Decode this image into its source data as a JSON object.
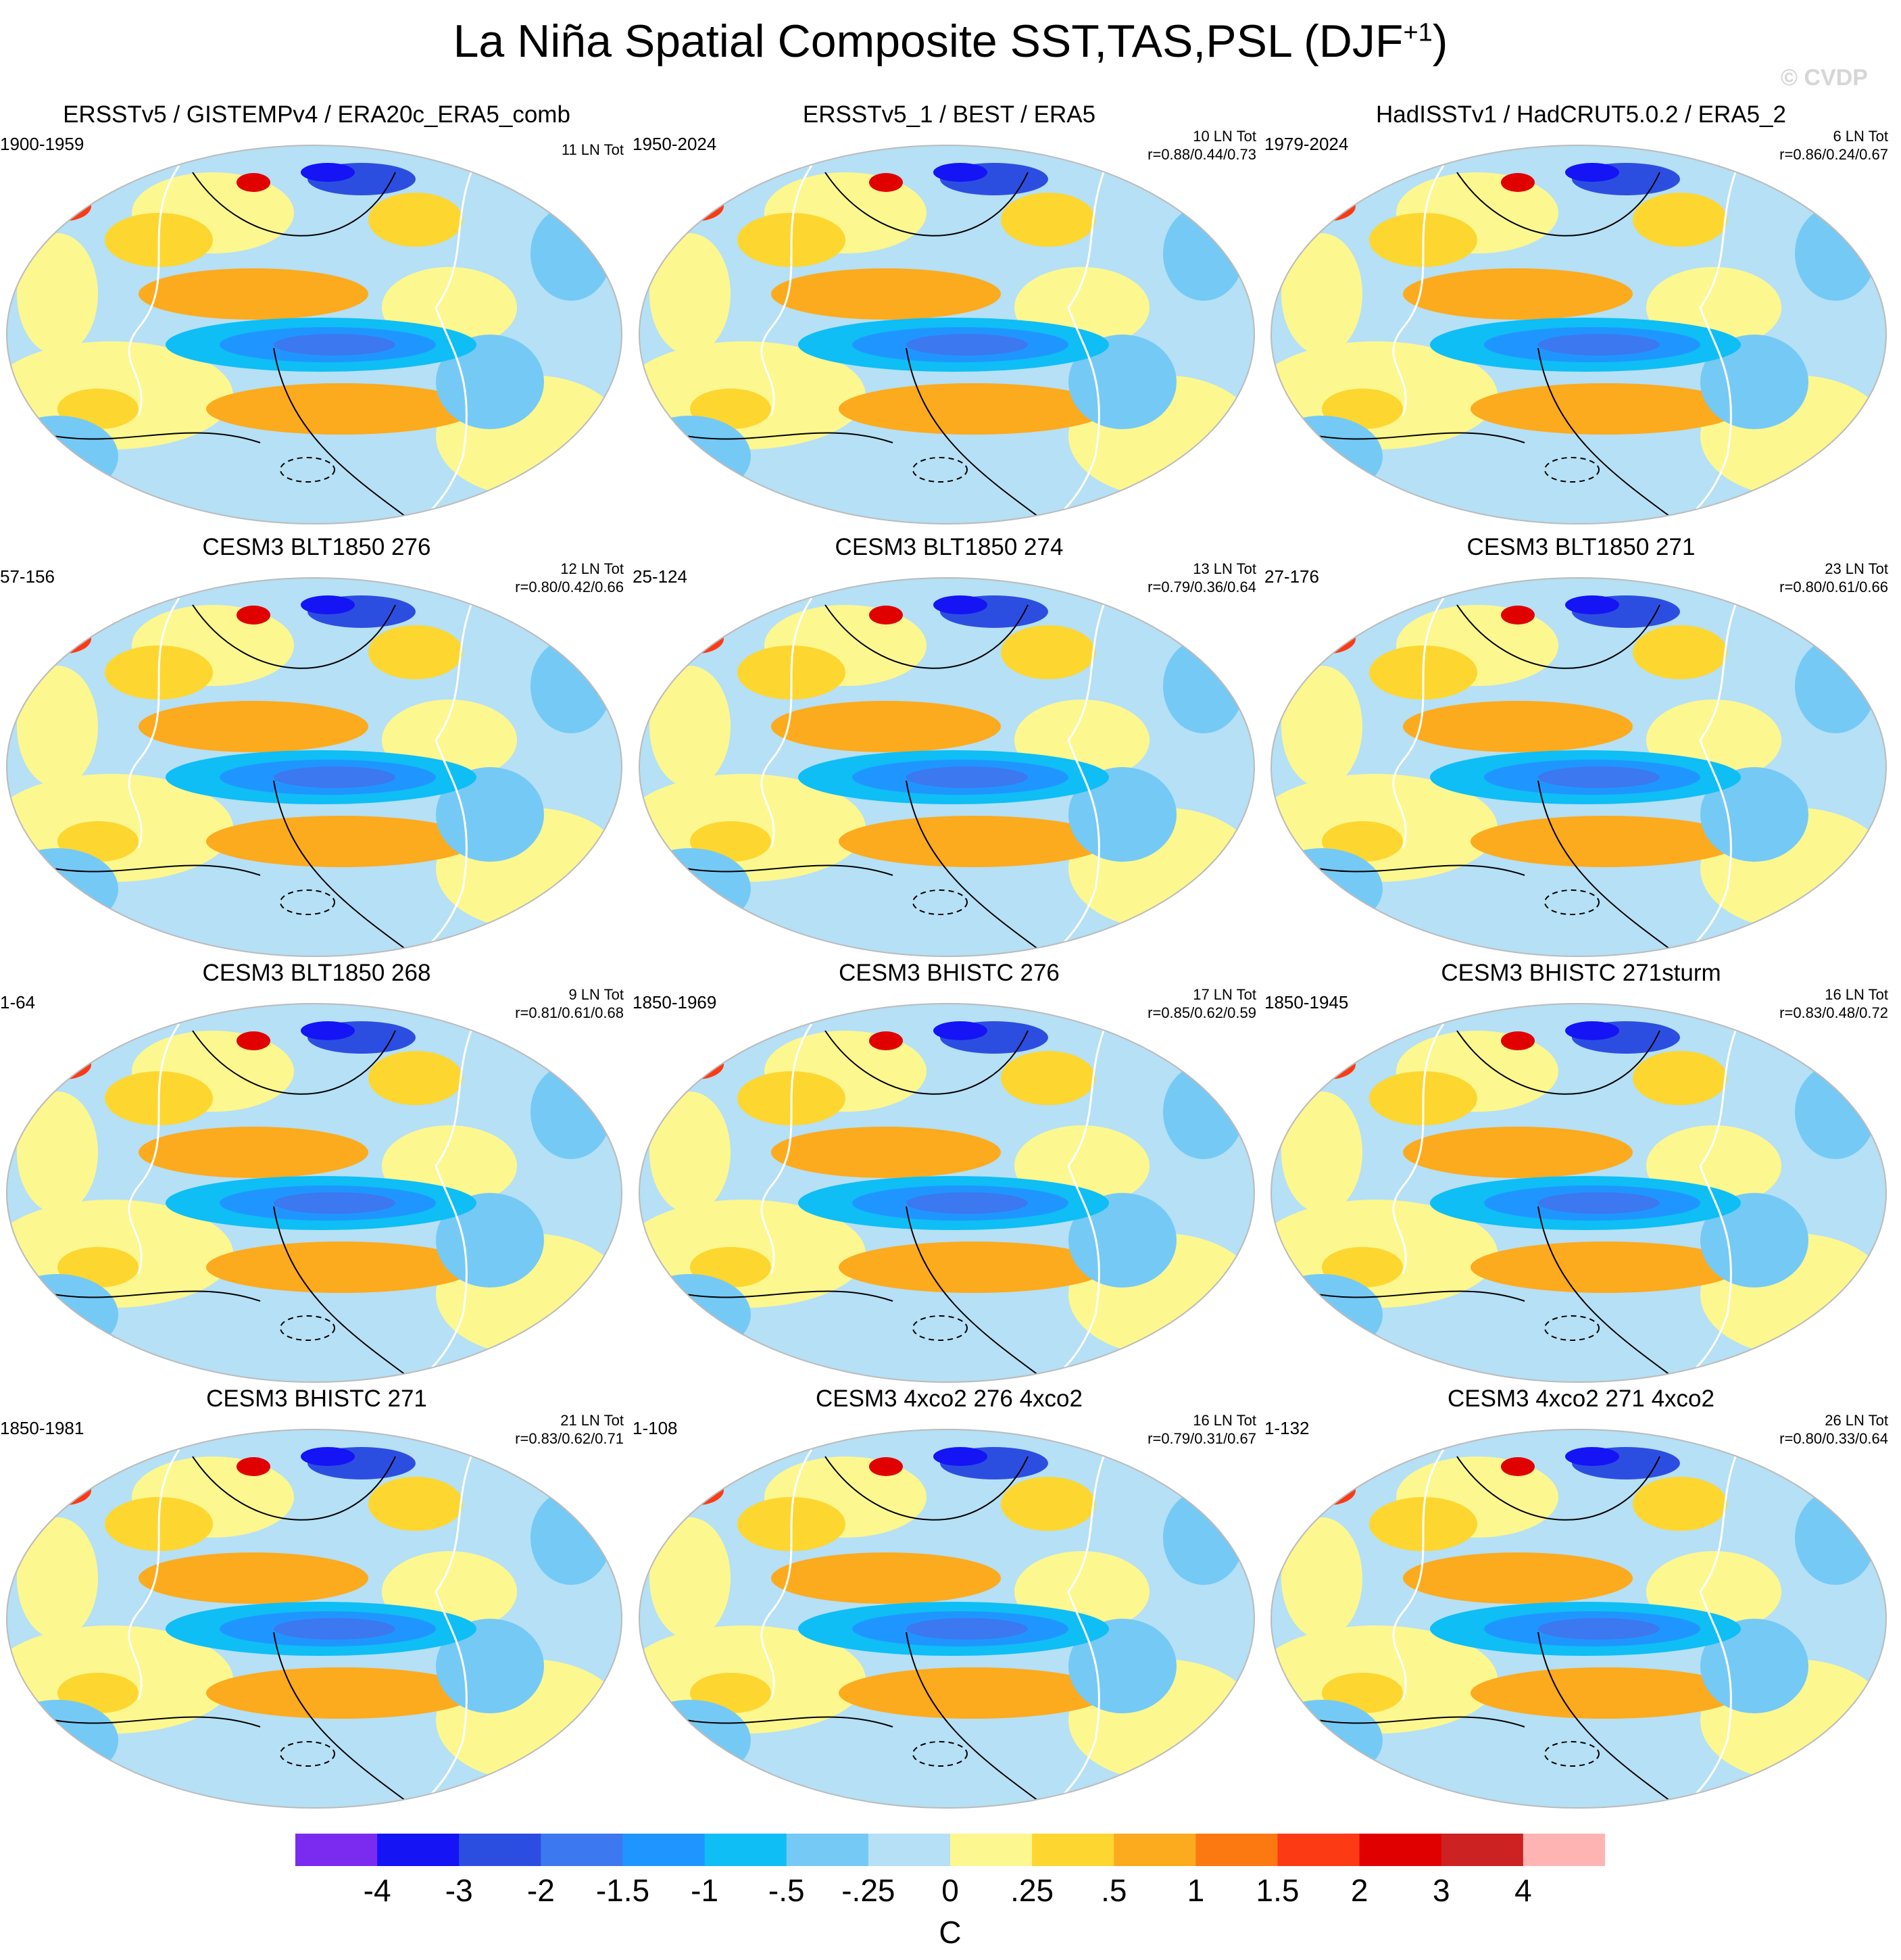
{
  "title_main": "La Niña Spatial Composite SST,TAS,PSL (DJF",
  "title_sup": "+1",
  "title_end": ")",
  "watermark": "© CVDP",
  "panels": [
    {
      "title": "ERSSTv5 / GISTEMPv4 / ERA20c_ERA5_comb",
      "period": "1900-1959",
      "count": "11 LN Tot",
      "stats": ""
    },
    {
      "title": "ERSSTv5_1 / BEST / ERA5",
      "period": "1950-2024",
      "count": "10 LN Tot",
      "stats": "r=0.88/0.44/0.73"
    },
    {
      "title": "HadISSTv1 / HadCRUT5.0.2 / ERA5_2",
      "period": "1979-2024",
      "count": "6 LN Tot",
      "stats": "r=0.86/0.24/0.67"
    },
    {
      "title": "CESM3 BLT1850 276",
      "period": "57-156",
      "count": "12 LN Tot",
      "stats": "r=0.80/0.42/0.66"
    },
    {
      "title": "CESM3 BLT1850 274",
      "period": "25-124",
      "count": "13 LN Tot",
      "stats": "r=0.79/0.36/0.64"
    },
    {
      "title": "CESM3 BLT1850 271",
      "period": "27-176",
      "count": "23 LN Tot",
      "stats": "r=0.80/0.61/0.66"
    },
    {
      "title": "CESM3 BLT1850 268",
      "period": "1-64",
      "count": "9 LN Tot",
      "stats": "r=0.81/0.61/0.68"
    },
    {
      "title": "CESM3 BHISTC 276",
      "period": "1850-1969",
      "count": "17 LN Tot",
      "stats": "r=0.85/0.62/0.59"
    },
    {
      "title": "CESM3 BHISTC 271sturm",
      "period": "1850-1945",
      "count": "16 LN Tot",
      "stats": "r=0.83/0.48/0.72"
    },
    {
      "title": "CESM3 BHISTC 271",
      "period": "1850-1981",
      "count": "21 LN Tot",
      "stats": "r=0.83/0.62/0.71"
    },
    {
      "title": "CESM3 4xco2 276 4xco2",
      "period": "1-108",
      "count": "16 LN Tot",
      "stats": "r=0.79/0.31/0.67"
    },
    {
      "title": "CESM3 4xco2 271 4xco2",
      "period": "1-132",
      "count": "26 LN Tot",
      "stats": "r=0.80/0.33/0.64"
    }
  ],
  "colorbar": {
    "colors": [
      "#7b2bf0",
      "#1414f5",
      "#2c4ee0",
      "#3c78f0",
      "#1f96ff",
      "#0ebef5",
      "#75c9f5",
      "#b5e0f5",
      "#fdf78f",
      "#fdd630",
      "#fcaa1e",
      "#fc7810",
      "#fc3a14",
      "#e10000",
      "#cc2222",
      "#ffb4b4"
    ],
    "labels": [
      "-4",
      "-3",
      "-2",
      "-1.5",
      "-1",
      "-.5",
      "-.25",
      "0",
      ".25",
      ".5",
      "1",
      "1.5",
      "2",
      "3",
      "4"
    ],
    "units": "C"
  }
}
